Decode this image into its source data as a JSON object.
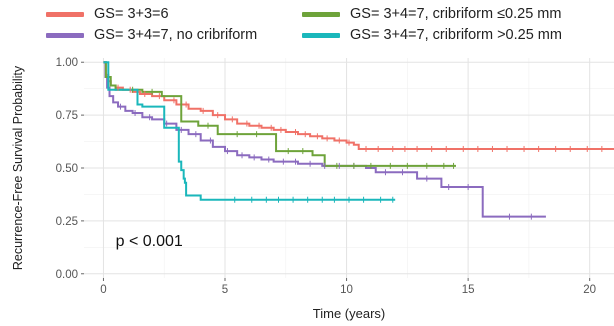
{
  "chart_data": {
    "type": "line",
    "subtype": "kaplan-meier step survival curves with censor marks",
    "title": "",
    "xlabel": "Time (years)",
    "ylabel": "Recurrence-Free Survival Probability",
    "xlim": [
      -0.8,
      21
    ],
    "ylim": [
      -0.02,
      1.02
    ],
    "x_ticks": [
      0,
      5,
      10,
      15,
      20
    ],
    "y_ticks": [
      0.0,
      0.25,
      0.5,
      0.75,
      1.0
    ],
    "x_tick_labels": [
      "0",
      "5",
      "10",
      "15",
      "20"
    ],
    "y_tick_labels": [
      "0.00",
      "0.25",
      "0.50",
      "0.75",
      "1.00"
    ],
    "grid": true,
    "legend_position": "top",
    "annotation": "p < 0.001",
    "annotation_at": {
      "x": 0.5,
      "y": 0.16
    },
    "series": [
      {
        "name": "GS= 3+3=6",
        "color": "#f07167",
        "points": [
          [
            0,
            1.0
          ],
          [
            0.1,
            0.94
          ],
          [
            0.2,
            0.91
          ],
          [
            0.3,
            0.89
          ],
          [
            0.5,
            0.88
          ],
          [
            0.8,
            0.87
          ],
          [
            1.2,
            0.86
          ],
          [
            1.5,
            0.85
          ],
          [
            2.0,
            0.84
          ],
          [
            2.5,
            0.82
          ],
          [
            3.0,
            0.8
          ],
          [
            3.5,
            0.78
          ],
          [
            4.0,
            0.77
          ],
          [
            4.5,
            0.75
          ],
          [
            5.0,
            0.73
          ],
          [
            5.5,
            0.71
          ],
          [
            6.0,
            0.7
          ],
          [
            6.5,
            0.69
          ],
          [
            7.0,
            0.68
          ],
          [
            7.5,
            0.67
          ],
          [
            8.0,
            0.66
          ],
          [
            8.5,
            0.65
          ],
          [
            9.0,
            0.64
          ],
          [
            9.5,
            0.63
          ],
          [
            10.0,
            0.62
          ],
          [
            10.3,
            0.61
          ],
          [
            10.5,
            0.59
          ],
          [
            21.0,
            0.59
          ]
        ],
        "censor_x": [
          0.6,
          1.1,
          1.7,
          2.3,
          2.9,
          3.4,
          4.1,
          4.7,
          5.3,
          5.9,
          6.4,
          6.9,
          7.3,
          7.9,
          8.3,
          8.8,
          9.2,
          9.7,
          10.1,
          10.8,
          11.3,
          11.9,
          12.4,
          12.9,
          13.5,
          14.1,
          14.8,
          15.4,
          16.0,
          16.6,
          17.3,
          17.9,
          18.6,
          19.2,
          19.9,
          20.5
        ]
      },
      {
        "name": "GS= 3+4=7, no cribriform",
        "color": "#8b6bbf",
        "points": [
          [
            0,
            1.0
          ],
          [
            0.08,
            0.93
          ],
          [
            0.15,
            0.88
          ],
          [
            0.25,
            0.84
          ],
          [
            0.4,
            0.81
          ],
          [
            0.6,
            0.79
          ],
          [
            0.9,
            0.77
          ],
          [
            1.2,
            0.76
          ],
          [
            1.6,
            0.74
          ],
          [
            2.0,
            0.73
          ],
          [
            2.5,
            0.71
          ],
          [
            3.0,
            0.68
          ],
          [
            3.5,
            0.66
          ],
          [
            4.0,
            0.63
          ],
          [
            4.5,
            0.6
          ],
          [
            5.0,
            0.58
          ],
          [
            5.5,
            0.56
          ],
          [
            6.0,
            0.55
          ],
          [
            6.5,
            0.54
          ],
          [
            7.0,
            0.53
          ],
          [
            8.0,
            0.52
          ],
          [
            9.0,
            0.51
          ],
          [
            10.5,
            0.51
          ],
          [
            10.8,
            0.5
          ],
          [
            11.0,
            0.5
          ],
          [
            11.2,
            0.48
          ],
          [
            12.8,
            0.48
          ],
          [
            12.9,
            0.45
          ],
          [
            13.8,
            0.45
          ],
          [
            13.9,
            0.41
          ],
          [
            15.5,
            0.41
          ],
          [
            15.6,
            0.27
          ],
          [
            18.2,
            0.27
          ]
        ],
        "censor_x": [
          0.7,
          1.3,
          1.9,
          2.6,
          3.2,
          3.8,
          4.4,
          5.1,
          5.7,
          6.2,
          6.8,
          7.4,
          7.9,
          8.5,
          9.1,
          9.7,
          10.3,
          11.6,
          12.3,
          13.3,
          14.2,
          15.0,
          16.7,
          17.6
        ]
      },
      {
        "name": "GS= 3+4=7, cribriform ≤0.25 mm",
        "color": "#6ea33a",
        "points": [
          [
            0,
            1.0
          ],
          [
            0.1,
            0.93
          ],
          [
            0.3,
            0.89
          ],
          [
            0.5,
            0.87
          ],
          [
            1.5,
            0.87
          ],
          [
            1.6,
            0.86
          ],
          [
            2.3,
            0.86
          ],
          [
            2.4,
            0.84
          ],
          [
            3.0,
            0.84
          ],
          [
            3.2,
            0.72
          ],
          [
            3.8,
            0.72
          ],
          [
            3.9,
            0.7
          ],
          [
            4.6,
            0.7
          ],
          [
            4.7,
            0.66
          ],
          [
            7.0,
            0.66
          ],
          [
            7.1,
            0.58
          ],
          [
            8.5,
            0.58
          ],
          [
            8.6,
            0.56
          ],
          [
            9.0,
            0.56
          ],
          [
            9.1,
            0.51
          ],
          [
            14.5,
            0.51
          ]
        ],
        "censor_x": [
          1.2,
          2.0,
          4.3,
          5.5,
          6.3,
          7.6,
          8.2,
          9.6,
          10.3,
          11.0,
          11.8,
          12.5,
          13.3,
          14.0,
          14.4
        ]
      },
      {
        "name": "GS= 3+4=7, cribriform >0.25 mm",
        "color": "#1ab7bb",
        "points": [
          [
            0,
            1.0
          ],
          [
            0.2,
            0.87
          ],
          [
            1.3,
            0.87
          ],
          [
            1.4,
            0.8
          ],
          [
            1.6,
            0.79
          ],
          [
            2.4,
            0.79
          ],
          [
            2.5,
            0.69
          ],
          [
            3.0,
            0.69
          ],
          [
            3.1,
            0.53
          ],
          [
            3.2,
            0.49
          ],
          [
            3.3,
            0.45
          ],
          [
            3.35,
            0.43
          ],
          [
            3.4,
            0.37
          ],
          [
            3.9,
            0.37
          ],
          [
            4.0,
            0.35
          ],
          [
            5.0,
            0.35
          ],
          [
            5.1,
            0.35
          ],
          [
            12.0,
            0.35
          ]
        ],
        "censor_x": [
          5.4,
          6.1,
          6.7,
          7.2,
          7.8,
          8.4,
          9.0,
          9.5,
          10.1,
          10.7,
          11.4,
          11.9
        ]
      }
    ]
  }
}
